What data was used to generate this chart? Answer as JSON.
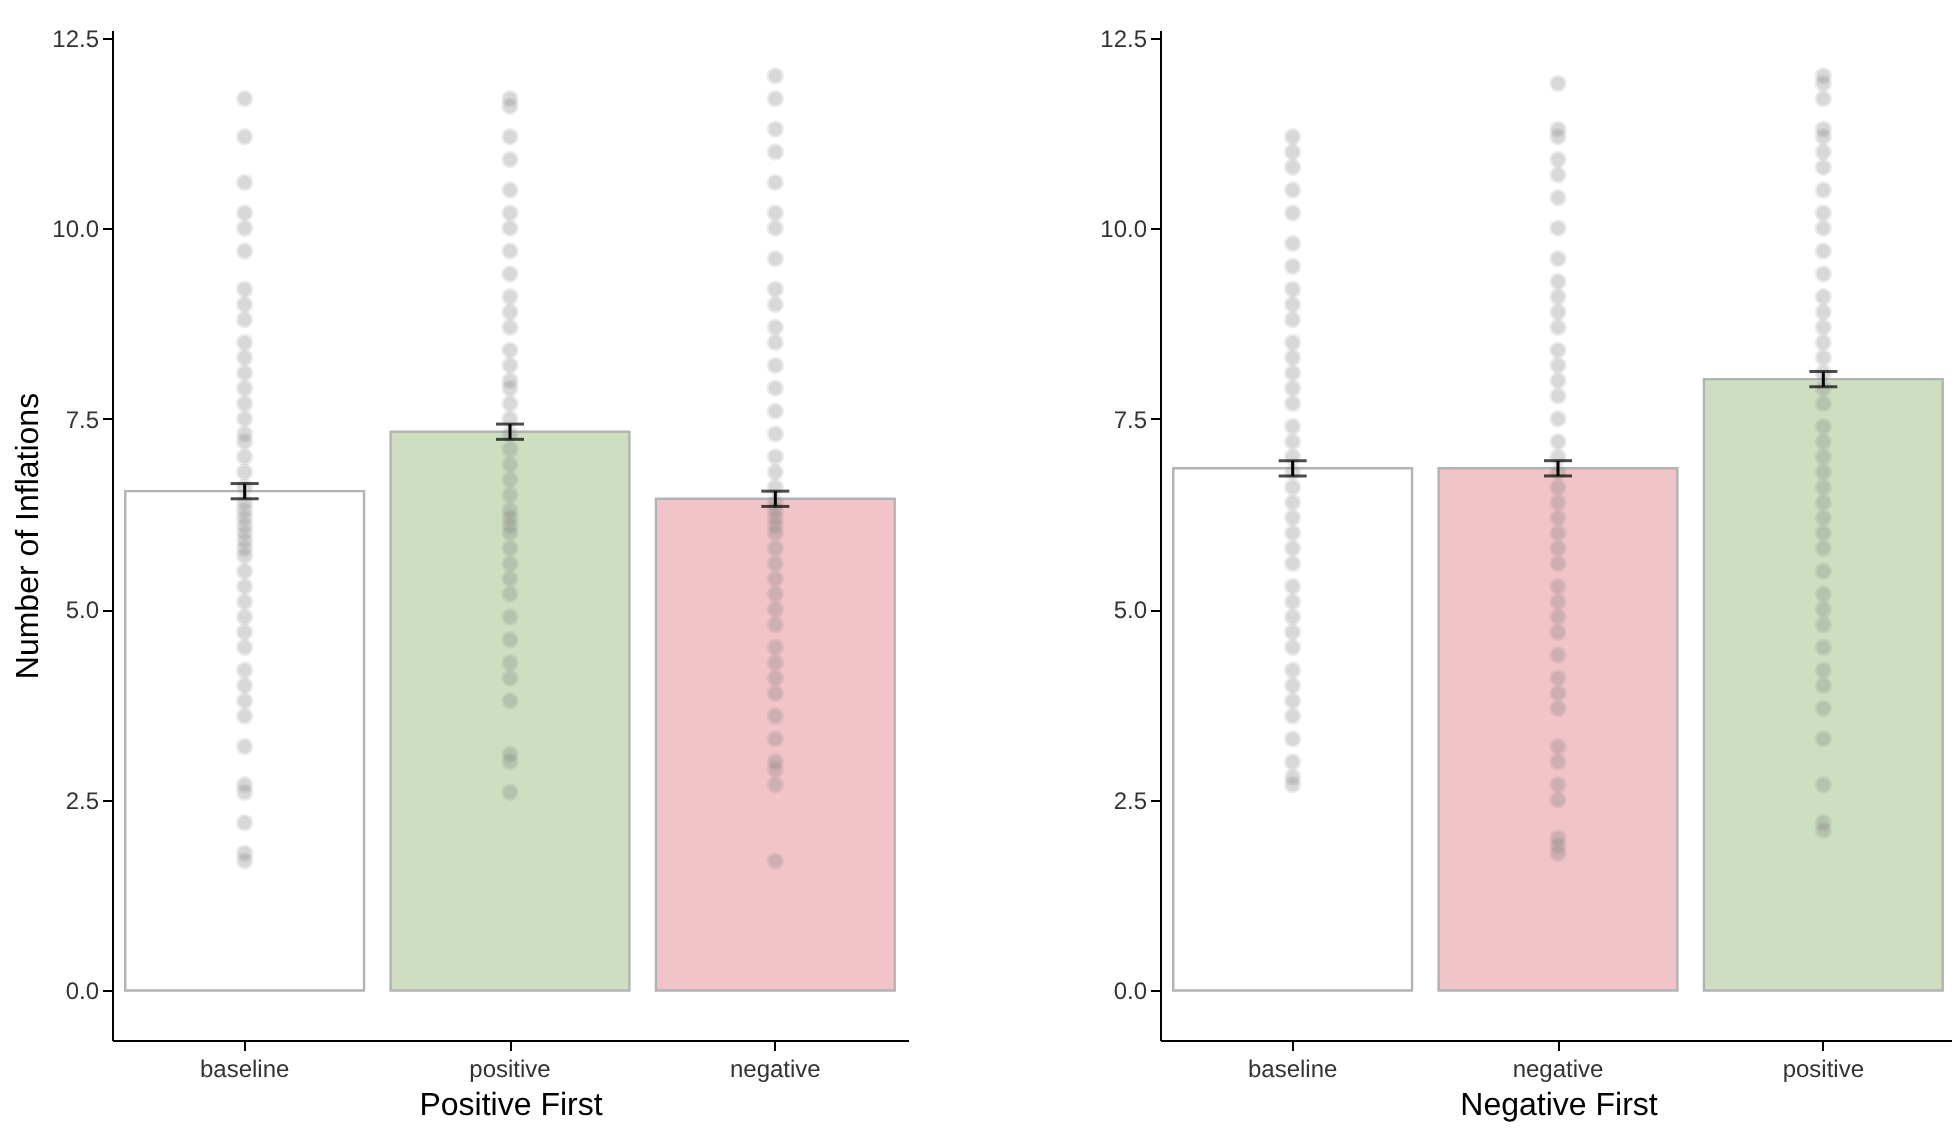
{
  "chart_data": [
    {
      "type": "bar",
      "xlabel": "Positive First",
      "ylabel": "Number of Inflations",
      "categories": [
        "baseline",
        "positive",
        "negative"
      ],
      "series": [
        {
          "colors": [
            "#ffffff",
            "#cddfc0",
            "#f0c4c8"
          ],
          "values": [
            6.55,
            7.33,
            6.45
          ],
          "errors": [
            0.1,
            0.1,
            0.1
          ]
        },
        {
          "type": "scatter",
          "color": "#808080",
          "x": [
            "baseline",
            "baseline",
            "baseline",
            "baseline",
            "baseline",
            "baseline",
            "baseline",
            "baseline",
            "baseline",
            "baseline",
            "baseline",
            "baseline",
            "baseline",
            "baseline",
            "baseline",
            "baseline",
            "baseline",
            "baseline",
            "baseline",
            "baseline",
            "baseline",
            "baseline",
            "baseline",
            "baseline",
            "baseline",
            "baseline",
            "baseline",
            "baseline",
            "baseline",
            "baseline",
            "baseline",
            "baseline",
            "baseline",
            "baseline",
            "baseline",
            "baseline",
            "baseline",
            "baseline",
            "baseline",
            "baseline",
            "baseline",
            "baseline",
            "baseline",
            "baseline",
            "positive",
            "positive",
            "positive",
            "positive",
            "positive",
            "positive",
            "positive",
            "positive",
            "positive",
            "positive",
            "positive",
            "positive",
            "positive",
            "positive",
            "positive",
            "positive",
            "positive",
            "positive",
            "positive",
            "positive",
            "positive",
            "positive",
            "positive",
            "positive",
            "positive",
            "positive",
            "positive",
            "positive",
            "positive",
            "positive",
            "positive",
            "positive",
            "positive",
            "positive",
            "positive",
            "positive",
            "positive",
            "positive",
            "positive",
            "negative",
            "negative",
            "negative",
            "negative",
            "negative",
            "negative",
            "negative",
            "negative",
            "negative",
            "negative",
            "negative",
            "negative",
            "negative",
            "negative",
            "negative",
            "negative",
            "negative",
            "negative",
            "negative",
            "negative",
            "negative",
            "negative",
            "negative",
            "negative",
            "negative",
            "negative",
            "negative",
            "negative",
            "negative",
            "negative",
            "negative",
            "negative",
            "negative",
            "negative",
            "negative",
            "negative",
            "negative",
            "negative",
            "negative",
            "negative"
          ],
          "values": [
            11.7,
            11.2,
            10.6,
            10.2,
            10.0,
            9.7,
            9.2,
            9.0,
            8.8,
            8.5,
            8.3,
            8.1,
            7.9,
            7.7,
            7.5,
            7.3,
            7.2,
            7.0,
            6.8,
            6.6,
            6.4,
            6.3,
            6.2,
            6.1,
            6.0,
            5.9,
            5.8,
            5.7,
            5.5,
            5.3,
            5.1,
            4.9,
            4.7,
            4.5,
            4.2,
            4.0,
            3.8,
            3.6,
            3.2,
            2.7,
            2.6,
            2.2,
            1.8,
            1.7,
            11.7,
            11.6,
            11.2,
            10.9,
            10.5,
            10.2,
            10.0,
            9.7,
            9.4,
            9.1,
            8.9,
            8.7,
            8.4,
            8.2,
            8.0,
            7.9,
            7.7,
            7.5,
            7.3,
            7.1,
            6.9,
            6.7,
            6.5,
            6.3,
            6.2,
            6.1,
            6.0,
            5.8,
            5.6,
            5.4,
            5.2,
            4.9,
            4.6,
            4.3,
            4.1,
            3.8,
            3.1,
            3.0,
            2.6,
            12.0,
            11.7,
            11.3,
            11.0,
            10.6,
            10.2,
            10.0,
            9.6,
            9.2,
            9.0,
            8.7,
            8.5,
            8.2,
            7.9,
            7.6,
            7.3,
            7.0,
            6.8,
            6.6,
            6.4,
            6.3,
            6.2,
            6.1,
            6.0,
            5.8,
            5.6,
            5.4,
            5.2,
            5.0,
            4.8,
            4.5,
            4.3,
            4.1,
            3.9,
            3.6,
            3.3,
            3.0,
            2.9,
            2.7,
            1.7
          ]
        }
      ],
      "ylim": [
        -0.65,
        12.6
      ],
      "yticks": [
        {
          "value": 0,
          "label": "0.0"
        },
        2.5,
        {
          "value": 5,
          "label": "5.0"
        },
        7.5,
        {
          "value": 10,
          "label": "10.0"
        },
        12.5
      ],
      "grid": false,
      "legend": false
    },
    {
      "type": "bar",
      "xlabel": "Negative First",
      "categories": [
        "baseline",
        "negative",
        "positive"
      ],
      "series": [
        {
          "colors": [
            "#ffffff",
            "#f0c4c8",
            "#cddfc0"
          ],
          "values": [
            6.85,
            6.85,
            8.02
          ],
          "errors": [
            0.1,
            0.1,
            0.1
          ]
        },
        {
          "type": "scatter",
          "color": "#808080",
          "x": [
            "baseline",
            "baseline",
            "baseline",
            "baseline",
            "baseline",
            "baseline",
            "baseline",
            "baseline",
            "baseline",
            "baseline",
            "baseline",
            "baseline",
            "baseline",
            "baseline",
            "baseline",
            "baseline",
            "baseline",
            "baseline",
            "baseline",
            "baseline",
            "baseline",
            "baseline",
            "baseline",
            "baseline",
            "baseline",
            "baseline",
            "baseline",
            "baseline",
            "baseline",
            "baseline",
            "baseline",
            "baseline",
            "baseline",
            "baseline",
            "baseline",
            "baseline",
            "baseline",
            "baseline",
            "negative",
            "negative",
            "negative",
            "negative",
            "negative",
            "negative",
            "negative",
            "negative",
            "negative",
            "negative",
            "negative",
            "negative",
            "negative",
            "negative",
            "negative",
            "negative",
            "negative",
            "negative",
            "negative",
            "negative",
            "negative",
            "negative",
            "negative",
            "negative",
            "negative",
            "negative",
            "negative",
            "negative",
            "negative",
            "negative",
            "negative",
            "negative",
            "negative",
            "negative",
            "negative",
            "negative",
            "negative",
            "negative",
            "negative",
            "negative",
            "negative",
            "positive",
            "positive",
            "positive",
            "positive",
            "positive",
            "positive",
            "positive",
            "positive",
            "positive",
            "positive",
            "positive",
            "positive",
            "positive",
            "positive",
            "positive",
            "positive",
            "positive",
            "positive",
            "positive",
            "positive",
            "positive",
            "positive",
            "positive",
            "positive",
            "positive",
            "positive",
            "positive",
            "positive",
            "positive",
            "positive",
            "positive",
            "positive",
            "positive",
            "positive",
            "positive",
            "positive",
            "positive",
            "positive",
            "positive",
            "positive",
            "positive"
          ],
          "values": [
            11.2,
            11.0,
            10.8,
            10.5,
            10.2,
            9.8,
            9.5,
            9.2,
            9.0,
            8.8,
            8.5,
            8.3,
            8.1,
            7.9,
            7.7,
            7.4,
            7.2,
            7.0,
            6.8,
            6.6,
            6.4,
            6.2,
            6.0,
            5.8,
            5.6,
            5.3,
            5.1,
            4.9,
            4.7,
            4.5,
            4.2,
            4.0,
            3.8,
            3.6,
            3.3,
            3.0,
            2.8,
            2.7,
            11.9,
            11.3,
            11.2,
            10.9,
            10.7,
            10.4,
            10.0,
            9.6,
            9.3,
            9.1,
            8.9,
            8.7,
            8.4,
            8.2,
            8.0,
            7.8,
            7.5,
            7.2,
            7.0,
            6.8,
            6.6,
            6.4,
            6.2,
            6.0,
            5.8,
            5.6,
            5.3,
            5.1,
            4.9,
            4.7,
            4.4,
            4.1,
            3.9,
            3.7,
            3.2,
            3.0,
            2.7,
            2.5,
            2.0,
            1.9,
            1.8,
            12.0,
            11.9,
            11.7,
            11.3,
            11.2,
            11.0,
            10.8,
            10.5,
            10.2,
            10.0,
            9.7,
            9.4,
            9.1,
            8.9,
            8.7,
            8.5,
            8.3,
            8.1,
            7.9,
            7.7,
            7.4,
            7.2,
            7.0,
            6.8,
            6.6,
            6.4,
            6.2,
            6.0,
            5.8,
            5.5,
            5.2,
            5.0,
            4.8,
            4.5,
            4.2,
            4.0,
            3.7,
            3.3,
            2.7,
            2.2,
            2.1
          ]
        }
      ],
      "ylim": [
        -0.65,
        12.6
      ],
      "yticks": [
        {
          "value": 0,
          "label": "0.0"
        },
        2.5,
        {
          "value": 5,
          "label": "5.0"
        },
        7.5,
        {
          "value": 10,
          "label": "10.0"
        },
        12.5
      ],
      "grid": false,
      "legend": false
    }
  ]
}
